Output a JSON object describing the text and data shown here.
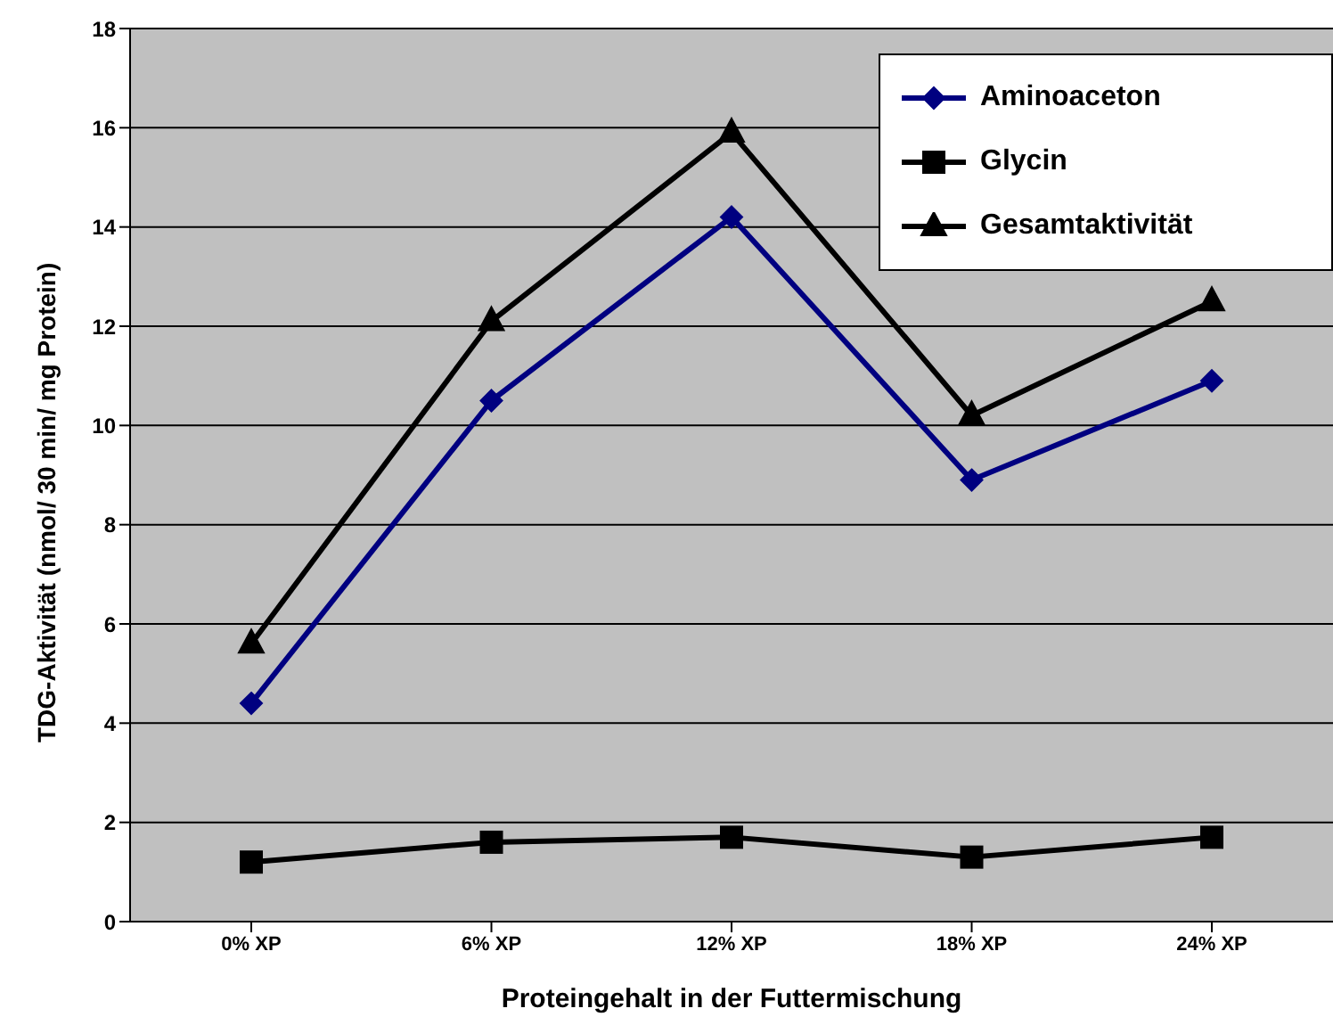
{
  "chart_data": {
    "type": "line",
    "xlabel": "Proteingehalt in der Futtermischung",
    "ylabel": "TDG-Aktivität  (nmol/ 30 min/ mg Protein)",
    "categories": [
      "0% XP",
      "6% XP",
      "12% XP",
      "18% XP",
      "24% XP"
    ],
    "series": [
      {
        "name": "Aminoaceton",
        "color": "#000080",
        "marker": "diamond",
        "values": [
          4.4,
          10.5,
          14.2,
          8.9,
          10.9
        ]
      },
      {
        "name": "Glycin",
        "color": "#000000",
        "marker": "square",
        "values": [
          1.2,
          1.6,
          1.7,
          1.3,
          1.7
        ]
      },
      {
        "name": "Gesamtaktivität",
        "color": "#000000",
        "marker": "triangle",
        "values": [
          5.6,
          12.1,
          15.9,
          10.2,
          12.5
        ]
      }
    ],
    "ylim": [
      0,
      18
    ],
    "yticks": [
      0,
      2,
      4,
      6,
      8,
      10,
      12,
      14,
      16,
      18
    ],
    "grid": "y",
    "legend": "top right"
  }
}
